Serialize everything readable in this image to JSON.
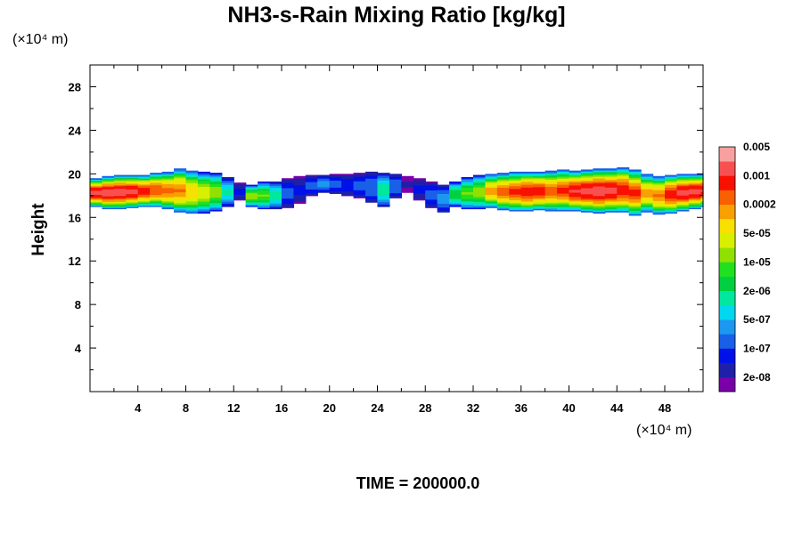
{
  "chart_data": {
    "type": "heatmap",
    "title": "NH3-s-Rain Mixing Ratio [kg/kg]",
    "ylabel": "Height",
    "x_unit": "(×10⁴ m)",
    "y_unit": "(×10⁴ m)",
    "xlim": [
      0,
      51.2
    ],
    "ylim": [
      0,
      30
    ],
    "x_ticks": [
      4,
      8,
      12,
      16,
      20,
      24,
      28,
      32,
      36,
      40,
      44,
      48
    ],
    "y_ticks": [
      4,
      8,
      12,
      16,
      20,
      24,
      28
    ],
    "footer": "TIME = 200000.0",
    "colorbar": {
      "colors": [
        "#7a00a8",
        "#1e20a8",
        "#0010e8",
        "#1860e8",
        "#1c98f0",
        "#00d8f0",
        "#00e8a0",
        "#00d040",
        "#20e020",
        "#90e000",
        "#d8f000",
        "#f8e000",
        "#f8a000",
        "#f86000",
        "#f81000",
        "#f85050",
        "#f8a0a0"
      ],
      "labels": [
        "2e-08",
        "1e-07",
        "5e-07",
        "2e-06",
        "1e-05",
        "5e-05",
        "0.0002",
        "0.001",
        "0.005"
      ]
    },
    "layer_profile": {
      "x": [
        0,
        1,
        2,
        3,
        4,
        5,
        6,
        7,
        8,
        9,
        10,
        11,
        12,
        13,
        14,
        15,
        16,
        17,
        18,
        19,
        20,
        21,
        22,
        23,
        24,
        25,
        26,
        27,
        28,
        29,
        30,
        31,
        32,
        33,
        34,
        35,
        36,
        37,
        38,
        39,
        40,
        41,
        42,
        43,
        44,
        45,
        46,
        47,
        48,
        49,
        50,
        51
      ],
      "top": [
        19.6,
        19.8,
        19.9,
        19.9,
        19.9,
        20.1,
        20.2,
        20.5,
        20.3,
        20.2,
        20.1,
        19.7,
        19.2,
        19.0,
        19.3,
        19.3,
        19.6,
        19.8,
        19.9,
        19.9,
        20.0,
        20.0,
        20.1,
        20.2,
        20.1,
        20.0,
        19.8,
        19.6,
        19.3,
        19.0,
        19.3,
        19.7,
        19.9,
        20.0,
        20.1,
        20.2,
        20.2,
        20.2,
        20.3,
        20.4,
        20.3,
        20.4,
        20.5,
        20.5,
        20.6,
        20.4,
        20.0,
        19.8,
        19.9,
        20.0,
        20.0,
        20.0
      ],
      "bottom": [
        17.0,
        16.8,
        16.8,
        16.9,
        17.0,
        17.0,
        16.8,
        16.5,
        16.4,
        16.4,
        16.6,
        17.0,
        17.6,
        17.0,
        16.8,
        16.8,
        16.9,
        17.3,
        18.0,
        18.3,
        18.2,
        18.0,
        17.8,
        17.4,
        17.0,
        17.8,
        18.3,
        17.6,
        16.9,
        16.5,
        17.0,
        16.8,
        16.8,
        16.9,
        16.7,
        16.6,
        16.6,
        16.7,
        16.6,
        16.6,
        16.6,
        16.5,
        16.4,
        16.5,
        16.5,
        16.2,
        16.5,
        16.3,
        16.4,
        16.6,
        16.8,
        17.0
      ],
      "peak_log10": [
        -2.6,
        -2.5,
        -2.5,
        -2.6,
        -2.9,
        -3.1,
        -3.3,
        -3.4,
        -3.8,
        -4.2,
        -4.6,
        -5.8,
        -7.2,
        -4.6,
        -4.8,
        -5.6,
        -6.8,
        -7.2,
        -6.8,
        -6.4,
        -6.8,
        -7.0,
        -6.8,
        -6.6,
        -5.6,
        -6.6,
        -7.6,
        -7.2,
        -6.8,
        -6.4,
        -5.2,
        -4.8,
        -4.6,
        -3.6,
        -3.2,
        -3.0,
        -2.8,
        -2.9,
        -3.2,
        -3.0,
        -2.7,
        -2.6,
        -2.5,
        -2.6,
        -2.8,
        -3.0,
        -3.6,
        -3.4,
        -2.8,
        -2.6,
        -2.6,
        -2.7
      ]
    }
  }
}
